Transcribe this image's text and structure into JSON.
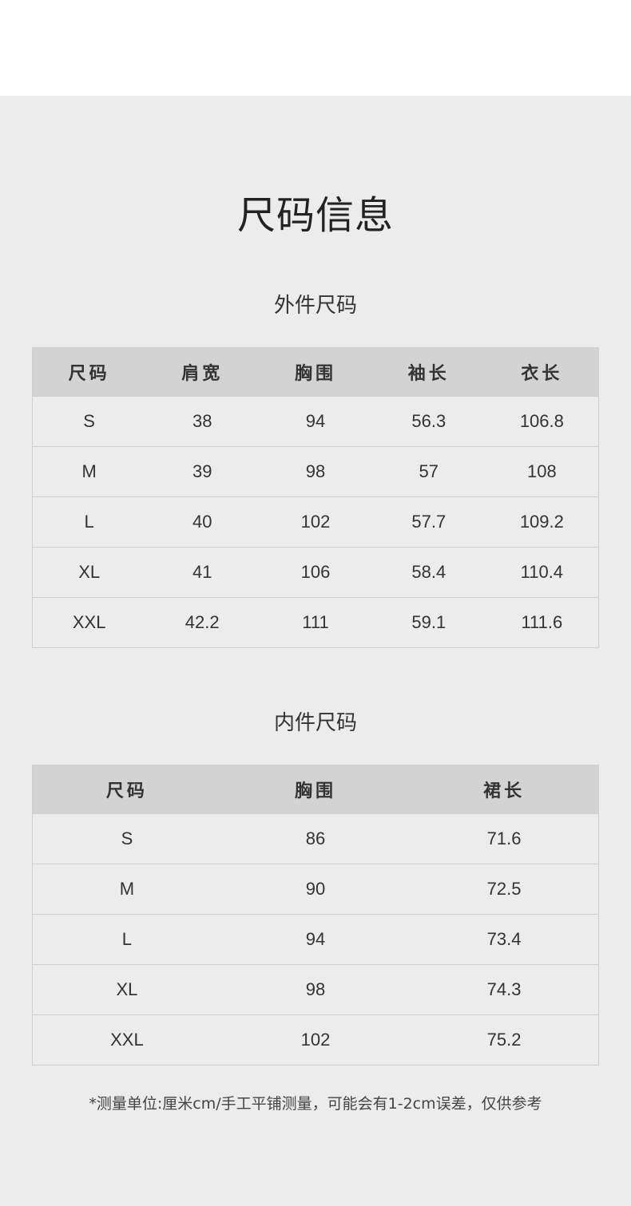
{
  "title": "尺码信息",
  "outer": {
    "title": "外件尺码",
    "headers": [
      "尺码",
      "肩宽",
      "胸围",
      "袖长",
      "衣长"
    ],
    "rows": [
      [
        "S",
        "38",
        "94",
        "56.3",
        "106.8"
      ],
      [
        "M",
        "39",
        "98",
        "57",
        "108"
      ],
      [
        "L",
        "40",
        "102",
        "57.7",
        "109.2"
      ],
      [
        "XL",
        "41",
        "106",
        "58.4",
        "110.4"
      ],
      [
        "XXL",
        "42.2",
        "111",
        "59.1",
        "111.6"
      ]
    ]
  },
  "inner": {
    "title": "内件尺码",
    "headers": [
      "尺码",
      "胸围",
      "裙长"
    ],
    "rows": [
      [
        "S",
        "86",
        "71.6"
      ],
      [
        "M",
        "90",
        "72.5"
      ],
      [
        "L",
        "94",
        "73.4"
      ],
      [
        "XL",
        "98",
        "74.3"
      ],
      [
        "XXL",
        "102",
        "75.2"
      ]
    ]
  },
  "note": "*测量单位:厘米cm/手工平铺测量，可能会有1-2cm误差，仅供参考"
}
